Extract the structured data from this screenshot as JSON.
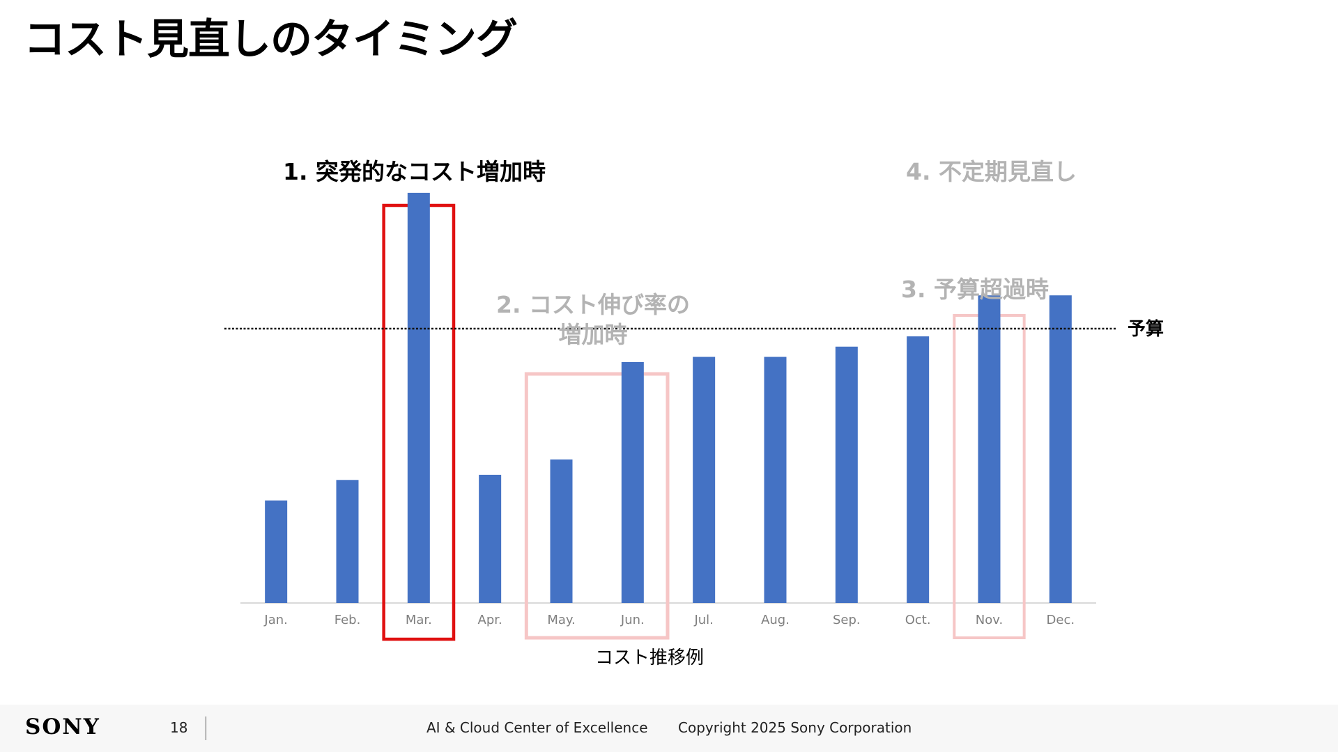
{
  "slide": {
    "title": "コスト見直しのタイミング"
  },
  "chart_data": {
    "type": "bar",
    "title": "",
    "xlabel": "コスト推移例",
    "ylabel": "",
    "categories": [
      "Jan.",
      "Feb.",
      "Mar.",
      "Apr.",
      "May.",
      "Jun.",
      "Jul.",
      "Aug.",
      "Sep.",
      "Oct.",
      "Nov.",
      "Dec."
    ],
    "values": [
      20,
      24,
      80,
      25,
      28,
      47,
      48,
      48,
      50,
      52,
      60,
      60
    ],
    "ylim": [
      0,
      88
    ],
    "grid": false,
    "bar_color": "#4472c4",
    "budget_line": {
      "value": 53.5,
      "label": "予算"
    },
    "annotations": [
      {
        "label": "1. 突発的なコスト増加時",
        "months": [
          "Mar."
        ],
        "box_color": "#e01010",
        "label_color": "#000000"
      },
      {
        "label_lines": [
          "2. コスト伸び率の",
          "増加時"
        ],
        "months": [
          "May.",
          "Jun."
        ],
        "box_color": "#f6c6c6",
        "label_color": "#b3b3b3"
      },
      {
        "label": "3. 予算超過時",
        "months": [
          "Nov."
        ],
        "box_color": "#f6c6c6",
        "label_color": "#b3b3b3"
      },
      {
        "label": "4. 不定期見直し",
        "months": [],
        "label_color": "#b3b3b3"
      }
    ]
  },
  "footer": {
    "logo": "SONY",
    "page_number": "18",
    "organization": "AI & Cloud Center of Excellence",
    "copyright": "Copyright 2025 Sony Corporation"
  }
}
